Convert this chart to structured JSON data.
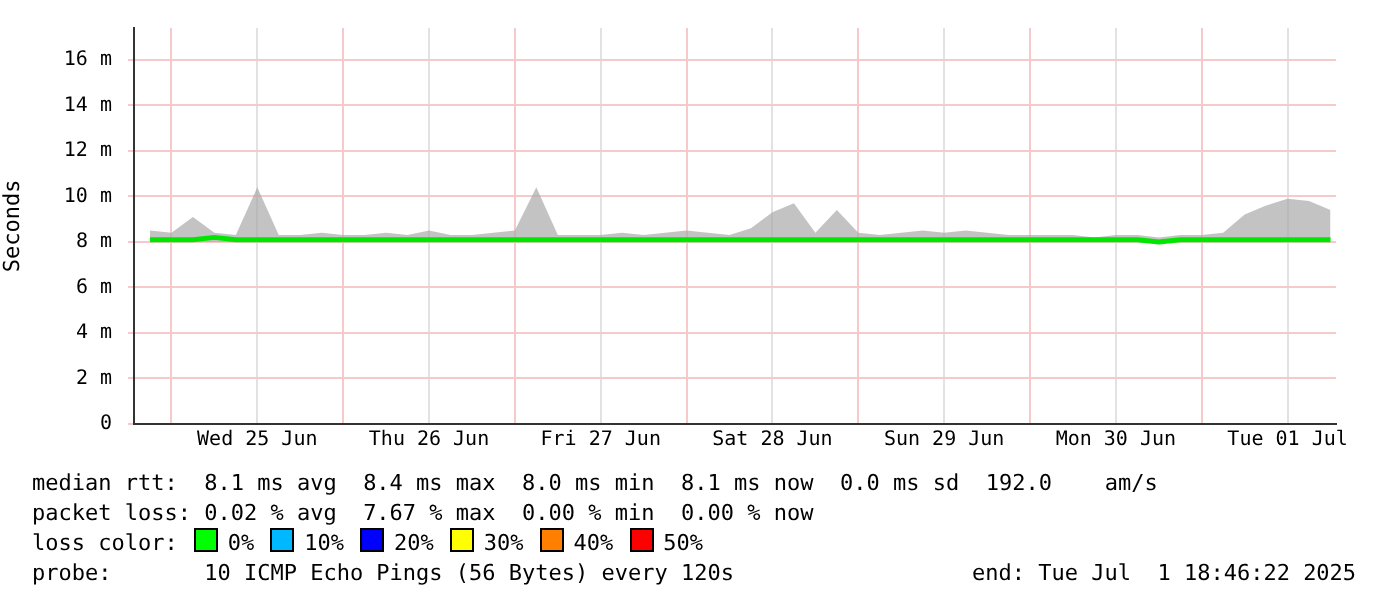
{
  "chart_data": {
    "type": "line",
    "ylabel": "Seconds",
    "legend": false,
    "grid": true,
    "marker": "none",
    "line_style": "solid",
    "x": [
      "2025-06-24T21:00",
      "2025-06-25T00:00",
      "2025-06-25T03:00",
      "2025-06-25T06:00",
      "2025-06-25T09:00",
      "2025-06-25T12:00",
      "2025-06-25T15:00",
      "2025-06-25T18:00",
      "2025-06-25T21:00",
      "2025-06-26T00:00",
      "2025-06-26T03:00",
      "2025-06-26T06:00",
      "2025-06-26T09:00",
      "2025-06-26T12:00",
      "2025-06-26T15:00",
      "2025-06-26T18:00",
      "2025-06-26T21:00",
      "2025-06-27T00:00",
      "2025-06-27T03:00",
      "2025-06-27T06:00",
      "2025-06-27T09:00",
      "2025-06-27T12:00",
      "2025-06-27T15:00",
      "2025-06-27T18:00",
      "2025-06-27T21:00",
      "2025-06-28T00:00",
      "2025-06-28T03:00",
      "2025-06-28T06:00",
      "2025-06-28T09:00",
      "2025-06-28T12:00",
      "2025-06-28T15:00",
      "2025-06-28T18:00",
      "2025-06-28T21:00",
      "2025-06-29T00:00",
      "2025-06-29T03:00",
      "2025-06-29T06:00",
      "2025-06-29T09:00",
      "2025-06-29T12:00",
      "2025-06-29T15:00",
      "2025-06-29T18:00",
      "2025-06-29T21:00",
      "2025-06-30T00:00",
      "2025-06-30T03:00",
      "2025-06-30T06:00",
      "2025-06-30T09:00",
      "2025-06-30T12:00",
      "2025-06-30T15:00",
      "2025-06-30T18:00",
      "2025-06-30T21:00",
      "2025-07-01T00:00",
      "2025-07-01T03:00",
      "2025-07-01T06:00",
      "2025-07-01T09:00",
      "2025-07-01T12:00",
      "2025-07-01T15:00",
      "2025-07-01T18:00"
    ],
    "series": [
      {
        "color": "#00e600",
        "values": [
          8.1,
          8.1,
          8.1,
          8.2,
          8.1,
          8.1,
          8.1,
          8.1,
          8.1,
          8.1,
          8.1,
          8.1,
          8.1,
          8.1,
          8.1,
          8.1,
          8.1,
          8.1,
          8.1,
          8.1,
          8.1,
          8.1,
          8.1,
          8.1,
          8.1,
          8.1,
          8.1,
          8.1,
          8.1,
          8.1,
          8.1,
          8.1,
          8.1,
          8.1,
          8.1,
          8.1,
          8.1,
          8.1,
          8.1,
          8.1,
          8.1,
          8.1,
          8.1,
          8.1,
          8.1,
          8.1,
          8.1,
          8.0,
          8.1,
          8.1,
          8.1,
          8.1,
          8.1,
          8.1,
          8.1,
          8.1
        ],
        "lower": [
          8.0,
          8.0,
          8.0,
          8.0,
          8.0,
          8.0,
          8.0,
          8.0,
          8.0,
          8.0,
          8.0,
          8.0,
          8.0,
          8.0,
          8.0,
          8.0,
          8.0,
          8.0,
          8.0,
          8.0,
          8.0,
          8.0,
          8.0,
          8.0,
          8.0,
          8.0,
          8.0,
          8.0,
          8.0,
          8.0,
          8.0,
          8.0,
          8.0,
          8.0,
          8.0,
          8.0,
          8.0,
          8.0,
          8.0,
          8.0,
          8.0,
          8.0,
          8.0,
          8.0,
          8.0,
          8.0,
          8.0,
          8.0,
          8.0,
          8.0,
          8.0,
          8.0,
          8.0,
          8.0,
          8.0,
          8.0
        ],
        "upper": [
          8.5,
          8.4,
          9.1,
          8.4,
          8.3,
          10.4,
          8.3,
          8.3,
          8.4,
          8.3,
          8.3,
          8.4,
          8.3,
          8.5,
          8.3,
          8.3,
          8.4,
          8.5,
          10.4,
          8.3,
          8.3,
          8.3,
          8.4,
          8.3,
          8.4,
          8.5,
          8.4,
          8.3,
          8.6,
          9.3,
          9.7,
          8.4,
          9.4,
          8.4,
          8.3,
          8.4,
          8.5,
          8.4,
          8.5,
          8.4,
          8.3,
          8.3,
          8.3,
          8.3,
          8.2,
          8.3,
          8.3,
          8.2,
          8.3,
          8.3,
          8.4,
          9.2,
          9.6,
          9.9,
          9.8,
          9.4
        ]
      }
    ],
    "xlim": [
      "2025-06-24T18:46",
      "2025-07-01T18:46"
    ],
    "xticks": [
      {
        "value": "2025-06-25T00:00",
        "label": null
      },
      {
        "value": "2025-06-25T12:00",
        "label": "Wed 25 Jun"
      },
      {
        "value": "2025-06-26T00:00",
        "label": null
      },
      {
        "value": "2025-06-26T12:00",
        "label": "Thu 26 Jun"
      },
      {
        "value": "2025-06-27T00:00",
        "label": null
      },
      {
        "value": "2025-06-27T12:00",
        "label": "Fri 27 Jun"
      },
      {
        "value": "2025-06-28T00:00",
        "label": null
      },
      {
        "value": "2025-06-28T12:00",
        "label": "Sat 28 Jun"
      },
      {
        "value": "2025-06-29T00:00",
        "label": null
      },
      {
        "value": "2025-06-29T12:00",
        "label": "Sun 29 Jun"
      },
      {
        "value": "2025-06-30T00:00",
        "label": null
      },
      {
        "value": "2025-06-30T12:00",
        "label": "Mon 30 Jun"
      },
      {
        "value": "2025-07-01T00:00",
        "label": null
      },
      {
        "value": "2025-07-01T12:00",
        "label": "Tue 01 Jul"
      }
    ],
    "ylim": [
      0,
      17.4
    ],
    "yticks": [
      {
        "value": 0,
        "label": "0"
      },
      {
        "value": 2,
        "label": "2 m"
      },
      {
        "value": 4,
        "label": "4 m"
      },
      {
        "value": 6,
        "label": "6 m"
      },
      {
        "value": 8,
        "label": "8 m"
      },
      {
        "value": 10,
        "label": "10 m"
      },
      {
        "value": 12,
        "label": "12 m"
      },
      {
        "value": 14,
        "label": "14 m"
      },
      {
        "value": 16,
        "label": "16 m"
      }
    ],
    "annotations": [
      "median rtt:  8.1 ms avg  8.4 ms max  8.0 ms min  8.1 ms now  0.0 ms sd  192.0    am/s",
      "packet loss: 0.02 % avg  7.67 % max  0.00 % min  0.00 % now",
      "loss color:",
      "0%",
      "10%",
      "20%",
      "30%",
      "40%",
      "50%",
      "probe:       10 ICMP Echo Pings (56 Bytes) every 120s",
      "end: Tue Jul  1 18:46:22 2025"
    ]
  }
}
